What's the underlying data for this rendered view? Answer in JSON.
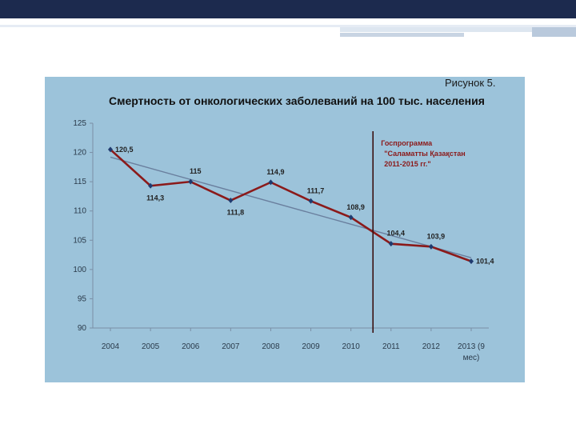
{
  "figure_label": "Рисунок 5.",
  "colors": {
    "series": "#8b1a1a",
    "trend": "#6a7f9e",
    "marker": "#1f3a6e",
    "panel": "#9cc3da",
    "divider": "#3a0f0f"
  },
  "chart_data": {
    "type": "line",
    "title": "Смертность от онкологических заболеваний на 100 тыс. населения",
    "categories": [
      "2004",
      "2005",
      "2006",
      "2007",
      "2008",
      "2009",
      "2010",
      "2011",
      "2012",
      "2013 (9 мес)"
    ],
    "category_lines": [
      [
        "2004"
      ],
      [
        "2005"
      ],
      [
        "2006"
      ],
      [
        "2007"
      ],
      [
        "2008"
      ],
      [
        "2009"
      ],
      [
        "2010"
      ],
      [
        "2011"
      ],
      [
        "2012"
      ],
      [
        "2013 (9",
        "мес)"
      ]
    ],
    "series": [
      {
        "values": [
          120.5,
          114.3,
          115,
          111.8,
          114.9,
          111.7,
          108.9,
          104.4,
          103.9,
          101.4
        ],
        "labels": [
          "120,5",
          "114,3",
          "115",
          "111,8",
          "114,9",
          "111,7",
          "108,9",
          "104,4",
          "103,9",
          "101,4"
        ]
      }
    ],
    "trendline": {
      "start": 119.2,
      "end": 102.0
    },
    "ylim": [
      90,
      125
    ],
    "yticks": [
      90,
      95,
      100,
      105,
      110,
      115,
      120,
      125
    ],
    "grid": false,
    "legend": "none",
    "annotation": {
      "lines": [
        "Госпрограмма",
        "\"Саламатты Қазақстан",
        "2011-2015 гг.\""
      ],
      "divider_between": [
        "2010",
        "2011"
      ]
    }
  }
}
